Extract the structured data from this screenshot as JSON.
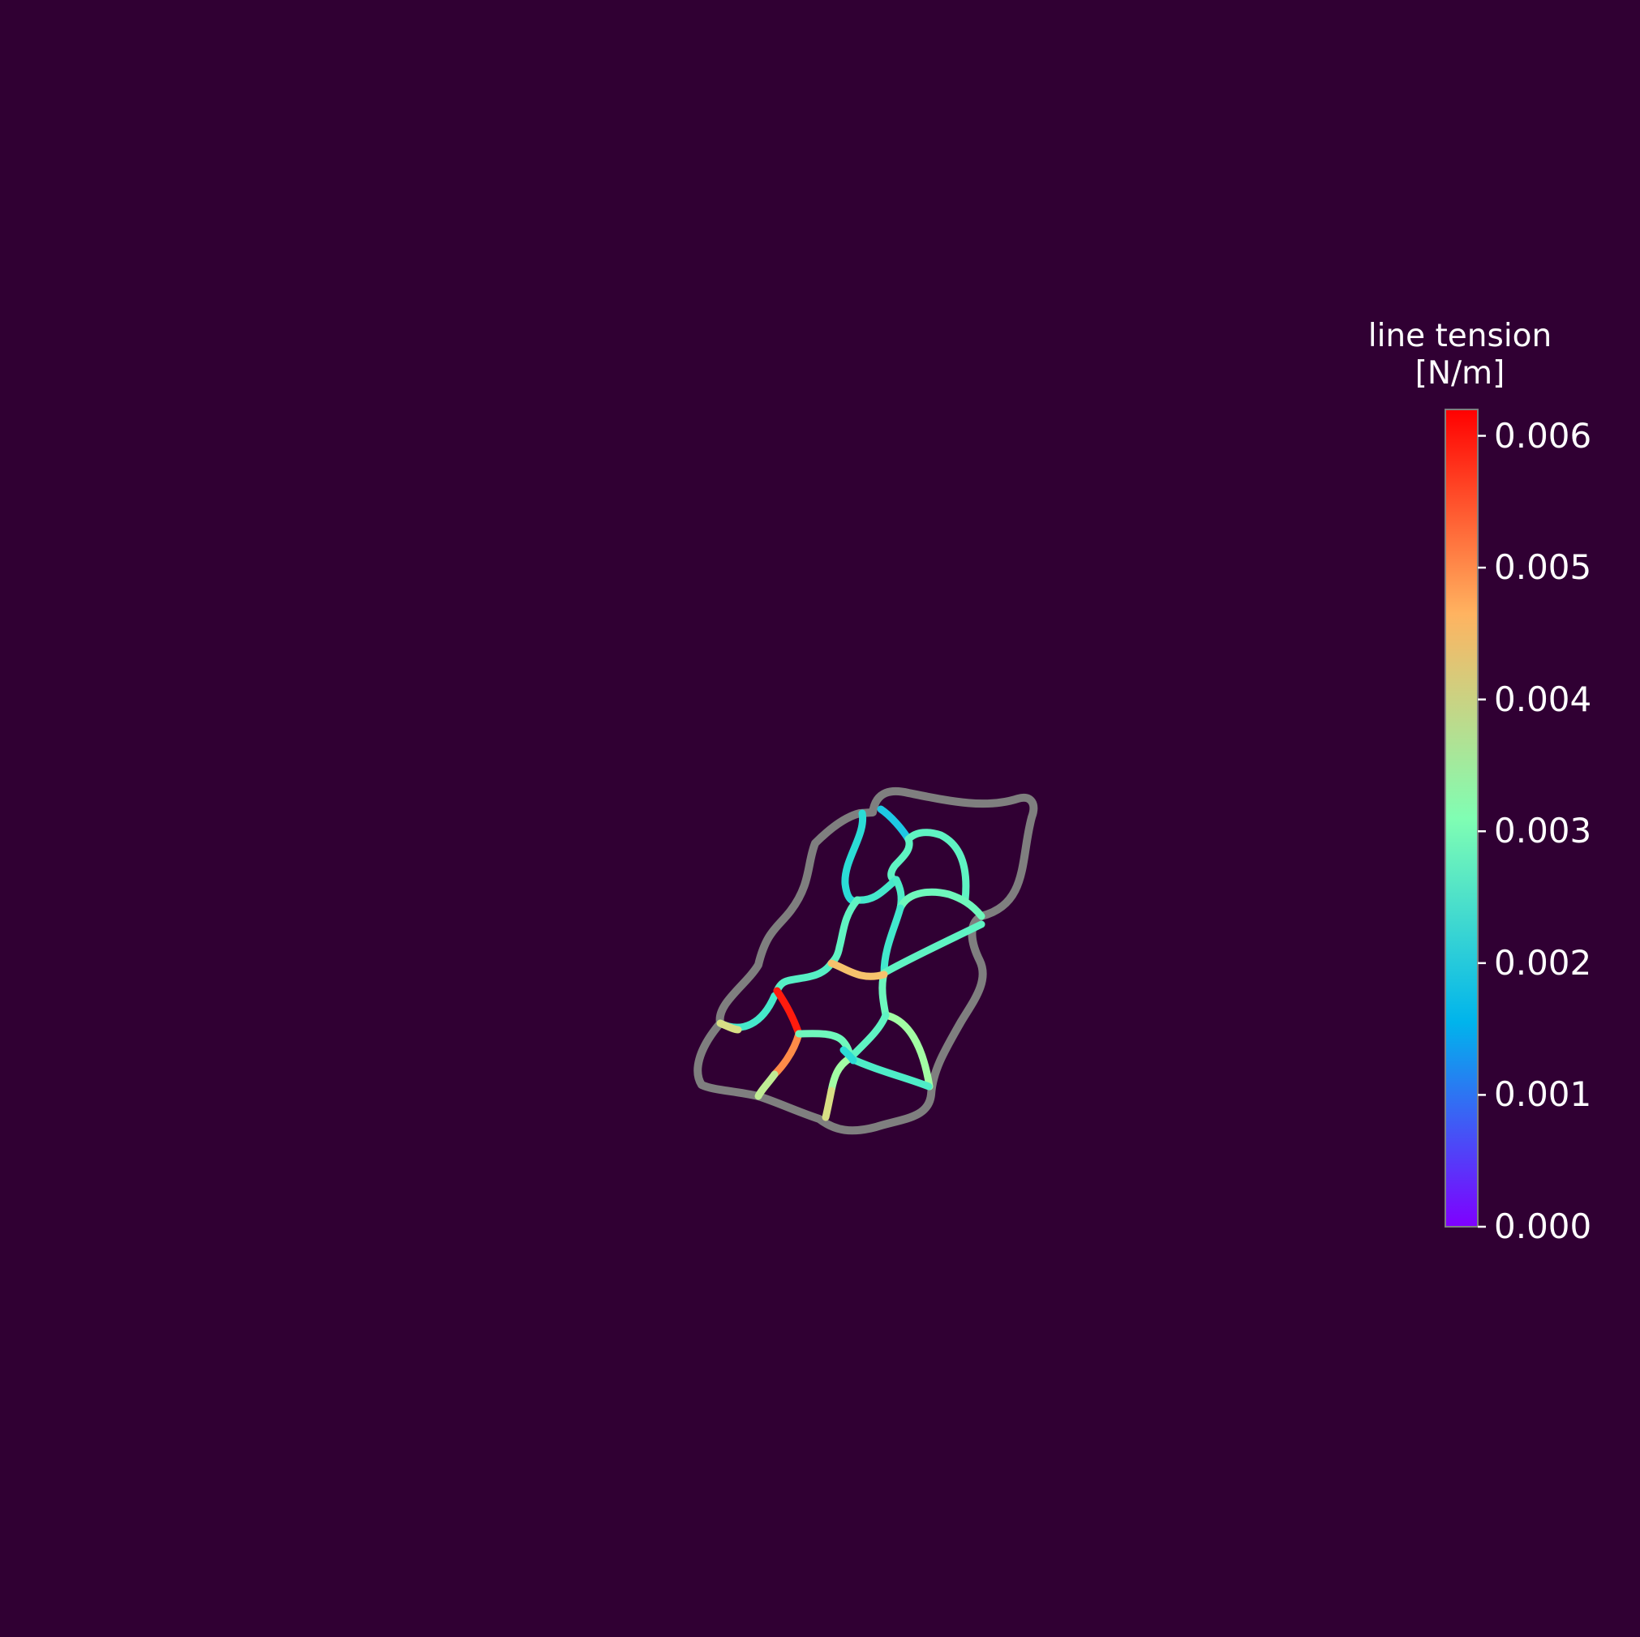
{
  "colorbar": {
    "title_line1": "line tension",
    "title_line2": "[N/m]",
    "range": [
      0.0,
      0.0062
    ],
    "ticks": [
      "0.000",
      "0.001",
      "0.002",
      "0.003",
      "0.004",
      "0.005",
      "0.006"
    ],
    "tick_values": [
      0.0,
      0.001,
      0.002,
      0.003,
      0.004,
      0.005,
      0.006
    ],
    "colormap": "rainbow",
    "stops": [
      "#7f00ff",
      "#00b4ec",
      "#80feb3",
      "#ffb360",
      "#ff0000"
    ]
  },
  "colors": {
    "background": "#300033",
    "boundary": "#7f7f7f"
  },
  "network": {
    "boundary_tension": "n/a",
    "edge_tensions": [
      0.002,
      0.0018,
      0.0028,
      0.0028,
      0.0025,
      0.0026,
      0.0031,
      0.0029,
      0.0024,
      0.0028,
      0.0028,
      0.0025,
      0.0042,
      0.003,
      0.0046,
      0.0034,
      0.006,
      0.0049,
      0.0038,
      0.0031,
      0.0029,
      0.0028,
      0.0034,
      0.0042,
      0.0026,
      0.0028,
      0.0045
    ]
  }
}
